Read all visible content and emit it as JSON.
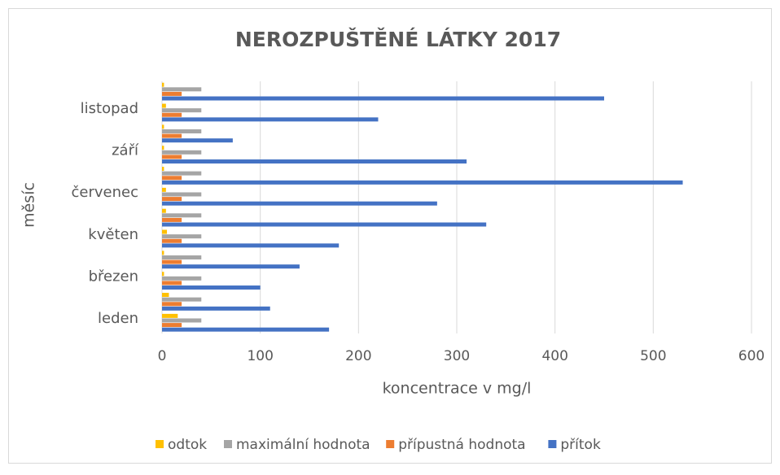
{
  "chart_data": {
    "type": "bar",
    "orientation": "horizontal",
    "title": "NEROZPUŠTĚNÉ LÁTKY 2017",
    "x_label": "koncentrace v mg/l",
    "y_label": "měsíc",
    "categories": [
      "leden",
      null,
      "březen",
      null,
      "květen",
      null,
      "červenec",
      null,
      "září",
      null,
      "listopad",
      null
    ],
    "series": [
      {
        "name": "odtok",
        "color": "#ffc000",
        "values": [
          16,
          7,
          2,
          2,
          5,
          4,
          4,
          2,
          2,
          2,
          4,
          2
        ]
      },
      {
        "name": "maximální hodnota",
        "color": "#a5a5a5",
        "values": [
          40,
          40,
          40,
          40,
          40,
          40,
          40,
          40,
          40,
          40,
          40,
          40
        ]
      },
      {
        "name": "přípustná hodnota",
        "color": "#ed7d31",
        "values": [
          20,
          20,
          20,
          20,
          20,
          20,
          20,
          20,
          20,
          20,
          20,
          20
        ]
      },
      {
        "name": "přítok",
        "color": "#4472c4",
        "values": [
          170,
          110,
          100,
          140,
          180,
          330,
          280,
          530,
          310,
          72,
          220,
          450
        ]
      }
    ],
    "xlim": [
      0,
      600
    ],
    "xticks": [
      0,
      100,
      200,
      300,
      400,
      500,
      600
    ],
    "grid": true,
    "legend": "bottom"
  }
}
